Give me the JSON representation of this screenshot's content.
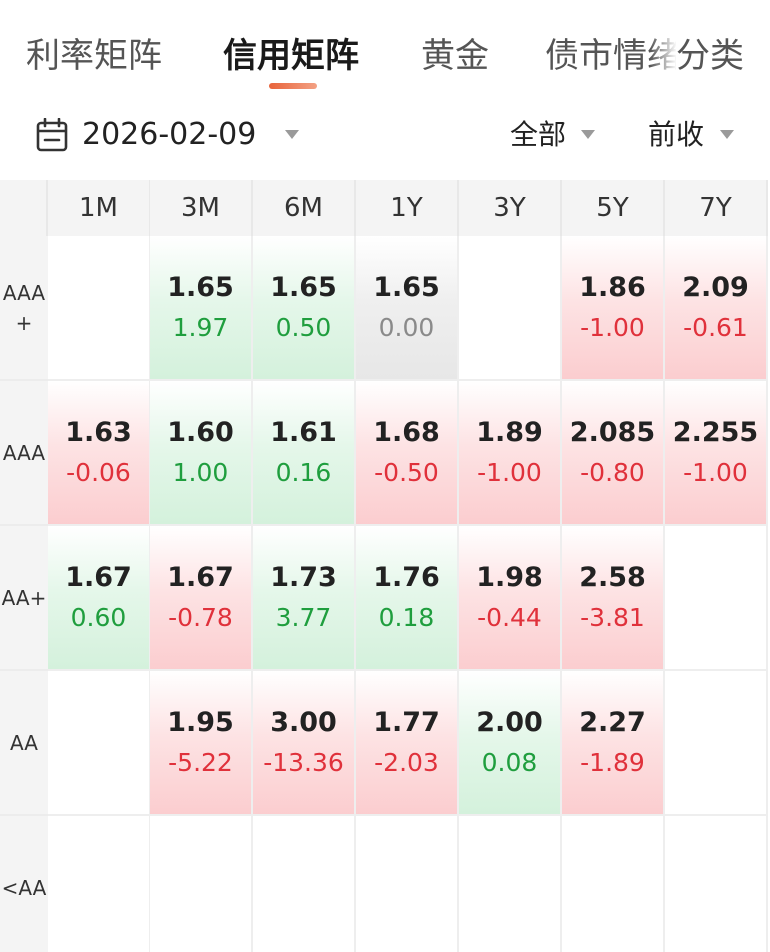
{
  "tabs": [
    {
      "label": "利率矩阵",
      "active": false
    },
    {
      "label": "信用矩阵",
      "active": true
    },
    {
      "label": "黄金",
      "active": false
    },
    {
      "label": "债市情绪",
      "active": false
    },
    {
      "label": "分类",
      "active": false
    }
  ],
  "filters": {
    "date": "2026-02-09",
    "scope": "全部",
    "compare": "前收"
  },
  "columns": [
    "1M",
    "3M",
    "6M",
    "1Y",
    "3Y",
    "5Y",
    "7Y"
  ],
  "rows": [
    {
      "label": "AAA\n+",
      "cells": [
        null,
        {
          "yield": "1.65",
          "change": "1.97",
          "trend": "down"
        },
        {
          "yield": "1.65",
          "change": "0.50",
          "trend": "down"
        },
        {
          "yield": "1.65",
          "change": "0.00",
          "trend": "flat"
        },
        null,
        {
          "yield": "1.86",
          "change": "-1.00",
          "trend": "up"
        },
        {
          "yield": "2.09",
          "change": "-0.61",
          "trend": "up"
        }
      ]
    },
    {
      "label": "AAA",
      "cells": [
        {
          "yield": "1.63",
          "change": "-0.06",
          "trend": "up"
        },
        {
          "yield": "1.60",
          "change": "1.00",
          "trend": "down"
        },
        {
          "yield": "1.61",
          "change": "0.16",
          "trend": "down"
        },
        {
          "yield": "1.68",
          "change": "-0.50",
          "trend": "up"
        },
        {
          "yield": "1.89",
          "change": "-1.00",
          "trend": "up"
        },
        {
          "yield": "2.085",
          "change": "-0.80",
          "trend": "up"
        },
        {
          "yield": "2.255",
          "change": "-1.00",
          "trend": "up"
        }
      ]
    },
    {
      "label": "AA+",
      "cells": [
        {
          "yield": "1.67",
          "change": "0.60",
          "trend": "down"
        },
        {
          "yield": "1.67",
          "change": "-0.78",
          "trend": "up"
        },
        {
          "yield": "1.73",
          "change": "3.77",
          "trend": "down"
        },
        {
          "yield": "1.76",
          "change": "0.18",
          "trend": "down"
        },
        {
          "yield": "1.98",
          "change": "-0.44",
          "trend": "up"
        },
        {
          "yield": "2.58",
          "change": "-3.81",
          "trend": "up"
        },
        null
      ]
    },
    {
      "label": "AA",
      "cells": [
        null,
        {
          "yield": "1.95",
          "change": "-5.22",
          "trend": "up"
        },
        {
          "yield": "3.00",
          "change": "-13.36",
          "trend": "up"
        },
        {
          "yield": "1.77",
          "change": "-2.03",
          "trend": "up"
        },
        {
          "yield": "2.00",
          "change": "0.08",
          "trend": "down"
        },
        {
          "yield": "2.27",
          "change": "-1.89",
          "trend": "up"
        },
        null
      ]
    },
    {
      "label": "<AA",
      "cells": [
        null,
        null,
        null,
        null,
        null,
        null,
        null
      ]
    }
  ],
  "colors": {
    "accent": "#e8633a",
    "negative_red": "#e0313b",
    "positive_green": "#1f9e3e",
    "neutral_gray": "#8a8a8a"
  },
  "icons": {
    "date_picker": "calendar-icon",
    "dropdown": "caret-down-icon"
  }
}
